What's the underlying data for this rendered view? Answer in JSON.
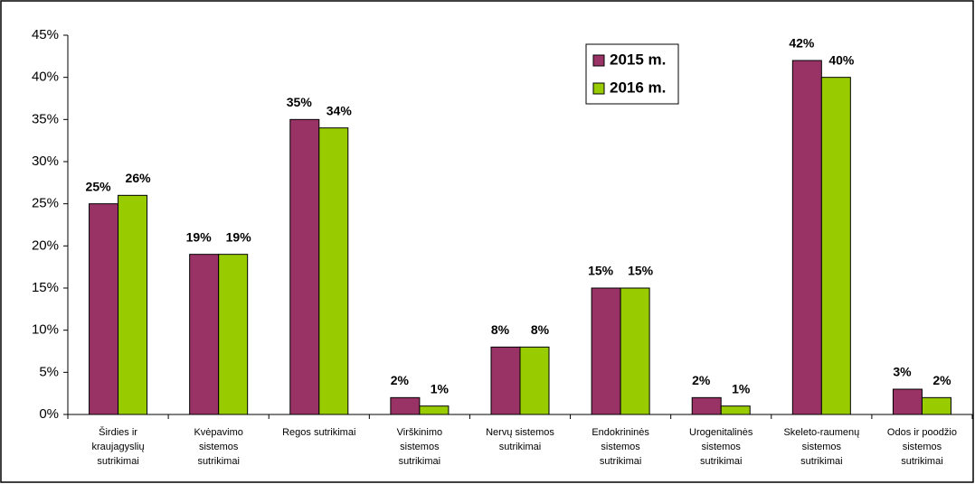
{
  "chart_data": {
    "type": "bar",
    "categories": [
      "Širdies ir\nkraujagyslių\nsutrikimai",
      "Kvėpavimo\nsistemos\nsutrikimai",
      "Regos sutrikimai",
      "Virškinimo\nsistemos\nsutrikimai",
      "Nervų sistemos\nsutrikimai",
      "Endokrininės\nsistemos\nsutrikimai",
      "Urogenitalinės\nsistemos\nsutrikimai",
      "Skeleto-raumenų\nsistemos\nsutrikimai",
      "Odos ir poodžio\nsistemos\nsutrikimai"
    ],
    "series": [
      {
        "name": "2015 m.",
        "color": "#993366",
        "values": [
          25,
          19,
          35,
          2,
          8,
          15,
          2,
          42,
          3
        ],
        "value_labels": [
          "25%",
          "19%",
          "35%",
          "2%",
          "8%",
          "15%",
          "2%",
          "42%",
          "3%"
        ]
      },
      {
        "name": "2016 m.",
        "color": "#99cc00",
        "values": [
          26,
          19,
          34,
          1,
          8,
          15,
          1,
          40,
          2
        ],
        "value_labels": [
          "26%",
          "19%",
          "34%",
          "1%",
          "8%",
          "15%",
          "1%",
          "40%",
          "2%"
        ]
      }
    ],
    "ylim": [
      0,
      45
    ],
    "yticks": [
      {
        "value": 0,
        "label": "0%"
      },
      {
        "value": 5,
        "label": "5%"
      },
      {
        "value": 10,
        "label": "10%"
      },
      {
        "value": 15,
        "label": "15%"
      },
      {
        "value": 20,
        "label": "20%"
      },
      {
        "value": 25,
        "label": "25%"
      },
      {
        "value": 30,
        "label": "30%"
      },
      {
        "value": 35,
        "label": "35%"
      },
      {
        "value": 40,
        "label": "40%"
      },
      {
        "value": 45,
        "label": "45%"
      }
    ],
    "grid": false,
    "legend": "top-right"
  }
}
